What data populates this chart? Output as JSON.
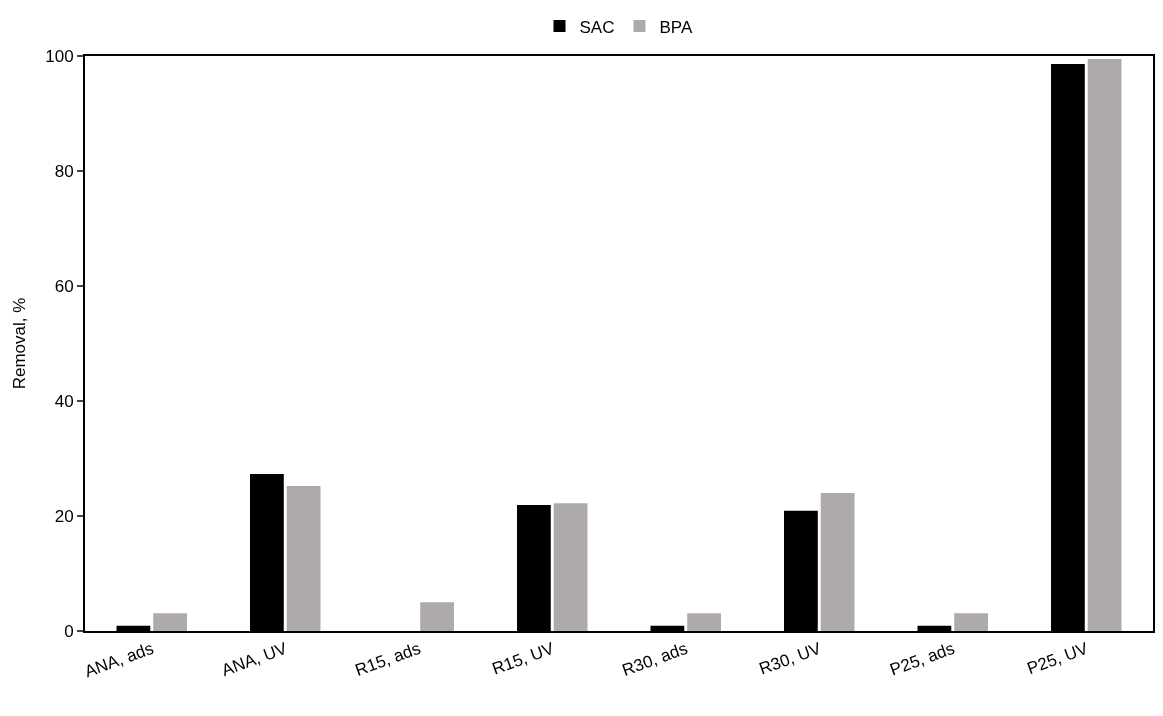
{
  "chart_data": {
    "type": "bar",
    "ylabel": "Removal, %",
    "categories": [
      "ANA, ads",
      "ANA, UV",
      "R15, ads",
      "R15, UV",
      "R30, ads",
      "R30, UV",
      "P25, ads",
      "P25, UV"
    ],
    "series": [
      {
        "name": "SAC",
        "color": "#000000",
        "values": [
          0.9,
          27.3,
          0,
          21.9,
          0.9,
          20.9,
          0.9,
          98.6
        ]
      },
      {
        "name": "BPA",
        "color": "#aeaaaa",
        "values": [
          3.1,
          25.2,
          5.0,
          22.2,
          3.1,
          24.0,
          3.1,
          99.5
        ]
      }
    ],
    "ylim": [
      0,
      100
    ],
    "yticks": [
      0,
      20,
      40,
      60,
      80,
      100
    ],
    "legend": "top"
  }
}
